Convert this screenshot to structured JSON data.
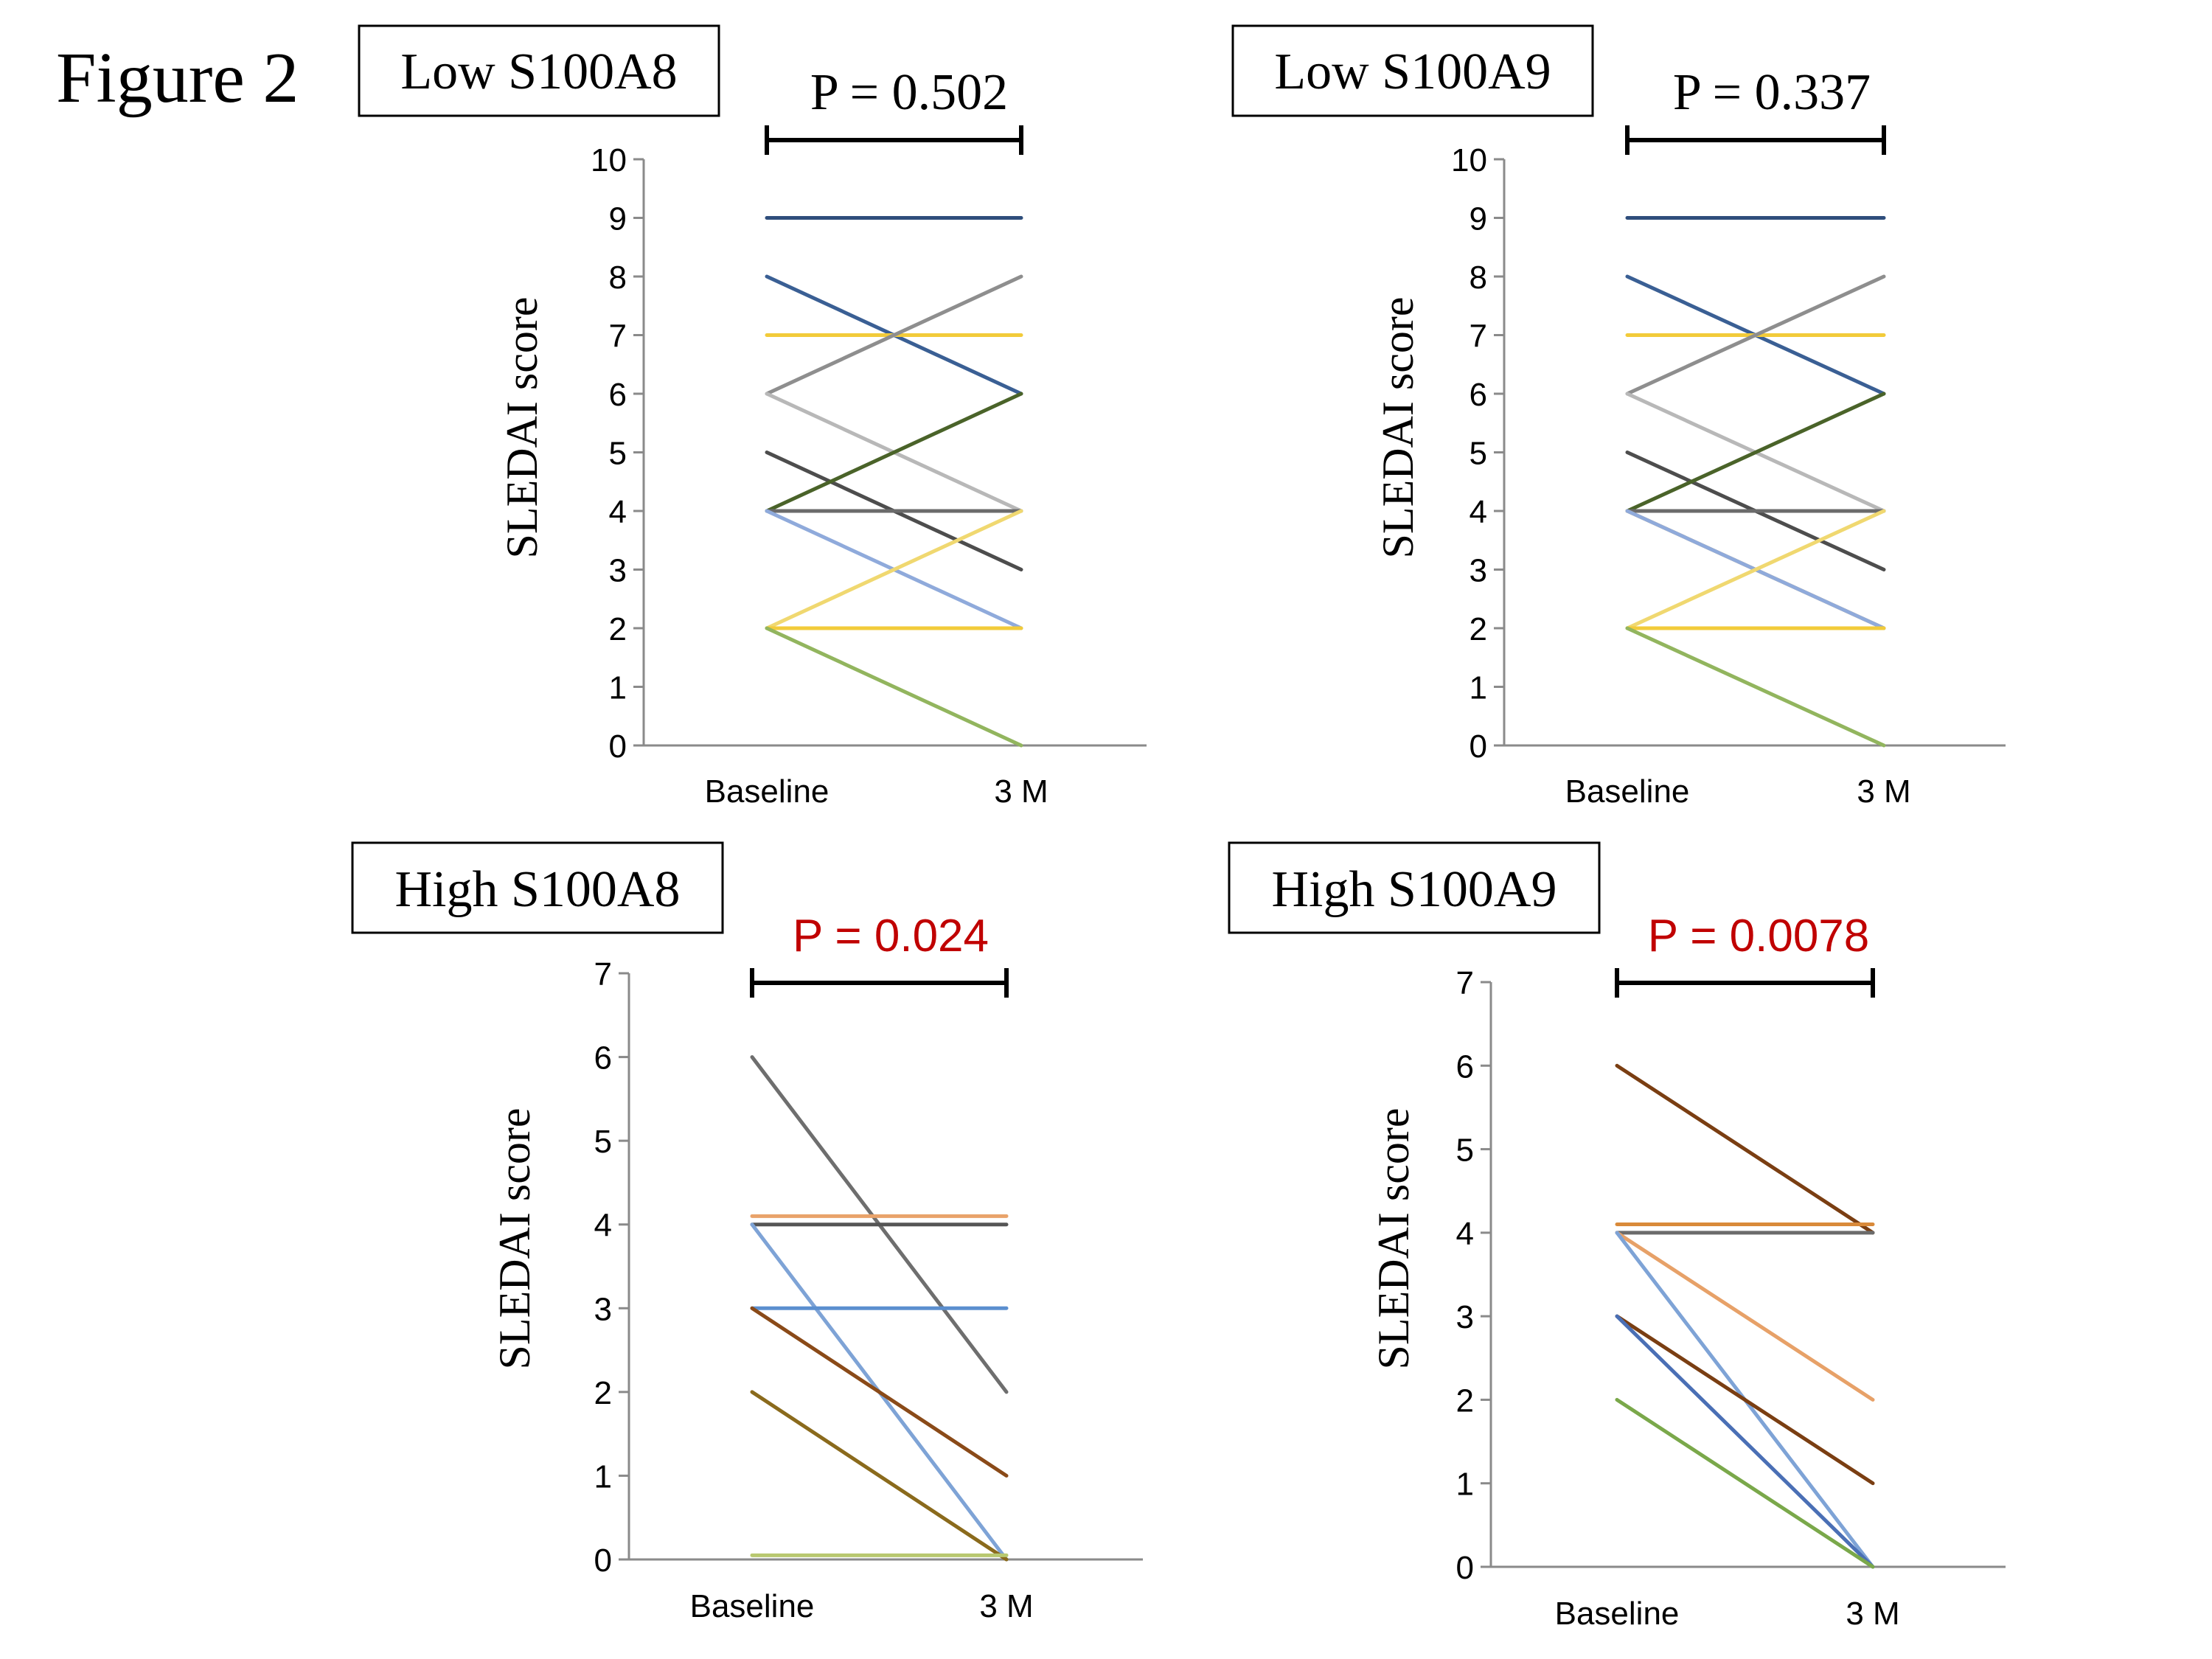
{
  "figure_title": "Figure 2",
  "colors": {
    "navy": "#2f4e7c",
    "steel_blue": "#3a5f94",
    "gold": "#f2cb3a",
    "gray_mid": "#8e8e8e",
    "dark_olive": "#4a6329",
    "silver": "#b8b8b8",
    "charcoal": "#4d4d4d",
    "light_blue": "#8faadb",
    "pale_yellow": "#f0d870",
    "light_green": "#92b55e",
    "orange": "#e9a36a",
    "brown": "#7a3e12",
    "olive_brown": "#8a6a1c",
    "mid_blue": "#5b8fcf",
    "blue_slate": "#4a6fb5",
    "light_orange": "#e7a168",
    "pvalue_sig": "#c00000",
    "pvalue_ns": "#000000"
  },
  "chart_data": [
    {
      "type": "line",
      "panel_label": "Low S100A8",
      "p_value": "P = 0.502",
      "significant": false,
      "ylabel": "SLEDAI score",
      "categories": [
        "Baseline",
        "3 M"
      ],
      "ylim": [
        0,
        10
      ],
      "yticks": [
        0,
        1,
        2,
        3,
        4,
        5,
        6,
        7,
        8,
        9,
        10
      ],
      "series": [
        {
          "values": [
            9,
            9
          ],
          "color": "#2f4e7c"
        },
        {
          "values": [
            8,
            6
          ],
          "color": "#3a5f94"
        },
        {
          "values": [
            7,
            7
          ],
          "color": "#f2cb3a"
        },
        {
          "values": [
            6,
            8
          ],
          "color": "#8e8e8e"
        },
        {
          "values": [
            6,
            4
          ],
          "color": "#b8b8b8"
        },
        {
          "values": [
            5,
            3
          ],
          "color": "#4d4d4d"
        },
        {
          "values": [
            4,
            6
          ],
          "color": "#4a6329"
        },
        {
          "values": [
            4,
            4
          ],
          "color": "#6b6b6b"
        },
        {
          "values": [
            4,
            2
          ],
          "color": "#8faadb"
        },
        {
          "values": [
            2,
            4
          ],
          "color": "#f0d870"
        },
        {
          "values": [
            2,
            2
          ],
          "color": "#f2cb3a"
        },
        {
          "values": [
            2,
            0
          ],
          "color": "#92b55e"
        }
      ]
    },
    {
      "type": "line",
      "panel_label": "Low S100A9",
      "p_value": "P = 0.337",
      "significant": false,
      "ylabel": "SLEDAI score",
      "categories": [
        "Baseline",
        "3 M"
      ],
      "ylim": [
        0,
        10
      ],
      "yticks": [
        0,
        1,
        2,
        3,
        4,
        5,
        6,
        7,
        8,
        9,
        10
      ],
      "series": [
        {
          "values": [
            9,
            9
          ],
          "color": "#2f4e7c"
        },
        {
          "values": [
            8,
            6
          ],
          "color": "#3a5f94"
        },
        {
          "values": [
            7,
            7
          ],
          "color": "#f2cb3a"
        },
        {
          "values": [
            6,
            8
          ],
          "color": "#8e8e8e"
        },
        {
          "values": [
            6,
            4
          ],
          "color": "#b8b8b8"
        },
        {
          "values": [
            5,
            3
          ],
          "color": "#4d4d4d"
        },
        {
          "values": [
            4,
            6
          ],
          "color": "#4a6329"
        },
        {
          "values": [
            4,
            4
          ],
          "color": "#6b6b6b"
        },
        {
          "values": [
            4,
            2
          ],
          "color": "#d9a040"
        },
        {
          "values": [
            4,
            2
          ],
          "color": "#8faadb"
        },
        {
          "values": [
            2,
            4
          ],
          "color": "#f0d870"
        },
        {
          "values": [
            2,
            2
          ],
          "color": "#f2cb3a"
        },
        {
          "values": [
            2,
            0
          ],
          "color": "#92b55e"
        }
      ]
    },
    {
      "type": "line",
      "panel_label": "High S100A8",
      "p_value": "P = 0.024",
      "significant": true,
      "ylabel": "SLEDAI score",
      "categories": [
        "Baseline",
        "3 M"
      ],
      "ylim": [
        0,
        7
      ],
      "yticks": [
        0,
        1,
        2,
        3,
        4,
        5,
        6,
        7
      ],
      "series": [
        {
          "values": [
            6,
            2
          ],
          "color": "#6e6e6e"
        },
        {
          "values": [
            4.1,
            4.1
          ],
          "color": "#e9a36a"
        },
        {
          "values": [
            4,
            4
          ],
          "color": "#555555"
        },
        {
          "values": [
            4,
            0
          ],
          "color": "#7ea3d6"
        },
        {
          "values": [
            3,
            3
          ],
          "color": "#5b8fcf"
        },
        {
          "values": [
            3,
            1
          ],
          "color": "#8a4a18"
        },
        {
          "values": [
            2,
            0
          ],
          "color": "#8a6a1c"
        },
        {
          "values": [
            0.05,
            0.05
          ],
          "color": "#b8c870"
        }
      ]
    },
    {
      "type": "line",
      "panel_label": "High S100A9",
      "p_value": "P = 0.0078",
      "significant": true,
      "ylabel": "SLEDAI score",
      "categories": [
        "Baseline",
        "3 M"
      ],
      "ylim": [
        0,
        7
      ],
      "yticks": [
        0,
        1,
        2,
        3,
        4,
        5,
        6,
        7
      ],
      "series": [
        {
          "values": [
            6,
            4
          ],
          "color": "#7a3e12"
        },
        {
          "values": [
            4.1,
            4.1
          ],
          "color": "#d98a3a"
        },
        {
          "values": [
            4,
            4
          ],
          "color": "#6b6b6b"
        },
        {
          "values": [
            4,
            2
          ],
          "color": "#e7a168"
        },
        {
          "values": [
            4,
            0
          ],
          "color": "#7ea3d6"
        },
        {
          "values": [
            3,
            1
          ],
          "color": "#7a3e12"
        },
        {
          "values": [
            3,
            0
          ],
          "color": "#4a6fb5"
        },
        {
          "values": [
            2,
            0
          ],
          "color": "#7aa84a"
        }
      ]
    }
  ]
}
